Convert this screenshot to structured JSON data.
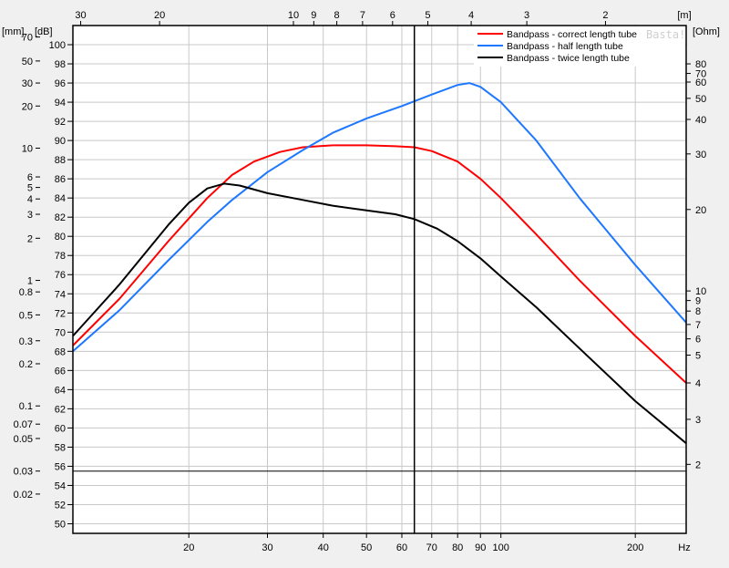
{
  "chart_data": {
    "type": "line",
    "title": "",
    "watermark": "Basta!",
    "xlabel": "Hz",
    "x_scale": "log",
    "xlim": [
      11,
      260
    ],
    "x_ticks": [
      20,
      30,
      40,
      50,
      60,
      70,
      80,
      90,
      100,
      200
    ],
    "x_ticks_labels": [
      "20",
      "30",
      "40",
      "50",
      "60",
      "70",
      "80",
      "90",
      "100",
      "200"
    ],
    "top_axis": {
      "unit": "[m]",
      "ticks": [
        {
          "label": "30",
          "hz": 11.45
        },
        {
          "label": "20",
          "hz": 17.2
        },
        {
          "label": "10",
          "hz": 34.3
        },
        {
          "label": "9",
          "hz": 38.1
        },
        {
          "label": "8",
          "hz": 42.9
        },
        {
          "label": "7",
          "hz": 49.0
        },
        {
          "label": "6",
          "hz": 57.2
        },
        {
          "label": "5",
          "hz": 68.6
        },
        {
          "label": "4",
          "hz": 85.8
        },
        {
          "label": "3",
          "hz": 114.3
        },
        {
          "label": "2",
          "hz": 171.5
        }
      ]
    },
    "left_axis_db": {
      "unit": "[dB]",
      "ylim": [
        49,
        102
      ],
      "ticks": [
        50,
        52,
        54,
        56,
        58,
        60,
        62,
        64,
        66,
        68,
        70,
        72,
        74,
        76,
        78,
        80,
        82,
        84,
        86,
        88,
        90,
        92,
        94,
        96,
        98,
        100
      ]
    },
    "left_axis_mm": {
      "unit": "[mm]",
      "ticks": [
        {
          "label": "70",
          "db": 100.8
        },
        {
          "label": "50",
          "db": 98.3
        },
        {
          "label": "30",
          "db": 96.0
        },
        {
          "label": "20",
          "db": 93.6
        },
        {
          "label": "10",
          "db": 89.2
        },
        {
          "label": "6",
          "db": 86.2
        },
        {
          "label": "5",
          "db": 85.1
        },
        {
          "label": "4",
          "db": 83.9
        },
        {
          "label": "3",
          "db": 82.3
        },
        {
          "label": "2",
          "db": 79.8
        },
        {
          "label": "1",
          "db": 75.4
        },
        {
          "label": "0.8",
          "db": 74.2
        },
        {
          "label": "0.5",
          "db": 71.8
        },
        {
          "label": "0.3",
          "db": 69.1
        },
        {
          "label": "0.2",
          "db": 66.7
        },
        {
          "label": "0.1",
          "db": 62.3
        },
        {
          "label": "0.07",
          "db": 60.4
        },
        {
          "label": "0.05",
          "db": 58.9
        },
        {
          "label": "0.03",
          "db": 55.5
        },
        {
          "label": "0.02",
          "db": 53.1
        }
      ]
    },
    "right_axis_ohm": {
      "unit": "[Ohm]",
      "ticks": [
        {
          "label": "80",
          "db": 98.0
        },
        {
          "label": "70",
          "db": 97.0
        },
        {
          "label": "60",
          "db": 96.1
        },
        {
          "label": "50",
          "db": 94.4
        },
        {
          "label": "40",
          "db": 92.2
        },
        {
          "label": "30",
          "db": 88.6
        },
        {
          "label": "20",
          "db": 82.8
        },
        {
          "label": "10",
          "db": 74.3
        },
        {
          "label": "9",
          "db": 73.3
        },
        {
          "label": "8",
          "db": 72.2
        },
        {
          "label": "7",
          "db": 70.8
        },
        {
          "label": "6",
          "db": 69.3
        },
        {
          "label": "5",
          "db": 67.6
        },
        {
          "label": "4",
          "db": 64.7
        },
        {
          "label": "3",
          "db": 60.9
        },
        {
          "label": "2",
          "db": 56.2
        }
      ]
    },
    "cursor": {
      "hz": 64,
      "db": 55.5
    },
    "legend": {
      "placement": "top-right"
    },
    "series": [
      {
        "name": "Bandpass - correct length tube",
        "color": "#ff0000",
        "points": [
          [
            11,
            68.6
          ],
          [
            14,
            73.5
          ],
          [
            18,
            79.5
          ],
          [
            22,
            84.0
          ],
          [
            25,
            86.4
          ],
          [
            28,
            87.8
          ],
          [
            32,
            88.8
          ],
          [
            36,
            89.3
          ],
          [
            42,
            89.5
          ],
          [
            50,
            89.5
          ],
          [
            58,
            89.4
          ],
          [
            64,
            89.3
          ],
          [
            70,
            88.9
          ],
          [
            80,
            87.8
          ],
          [
            90,
            86.0
          ],
          [
            100,
            84.0
          ],
          [
            120,
            80.2
          ],
          [
            150,
            75.4
          ],
          [
            200,
            69.6
          ],
          [
            260,
            64.7
          ]
        ]
      },
      {
        "name": "Bandpass - half length tube",
        "color": "#1e78ff",
        "points": [
          [
            11,
            68.0
          ],
          [
            14,
            72.3
          ],
          [
            18,
            77.5
          ],
          [
            22,
            81.5
          ],
          [
            25,
            83.8
          ],
          [
            30,
            86.7
          ],
          [
            36,
            89.0
          ],
          [
            42,
            90.8
          ],
          [
            50,
            92.3
          ],
          [
            60,
            93.6
          ],
          [
            70,
            94.8
          ],
          [
            80,
            95.8
          ],
          [
            85,
            96.0
          ],
          [
            90,
            95.6
          ],
          [
            100,
            94.0
          ],
          [
            120,
            90.0
          ],
          [
            150,
            84.0
          ],
          [
            200,
            77.0
          ],
          [
            260,
            71.0
          ]
        ]
      },
      {
        "name": "Bandpass - twice length tube",
        "color": "#000000",
        "points": [
          [
            11,
            69.6
          ],
          [
            14,
            75.0
          ],
          [
            18,
            81.2
          ],
          [
            20,
            83.5
          ],
          [
            22,
            85.0
          ],
          [
            24,
            85.5
          ],
          [
            26,
            85.3
          ],
          [
            30,
            84.5
          ],
          [
            36,
            83.8
          ],
          [
            42,
            83.2
          ],
          [
            50,
            82.7
          ],
          [
            58,
            82.3
          ],
          [
            64,
            81.8
          ],
          [
            72,
            80.8
          ],
          [
            80,
            79.5
          ],
          [
            90,
            77.7
          ],
          [
            100,
            75.8
          ],
          [
            120,
            72.6
          ],
          [
            150,
            68.3
          ],
          [
            200,
            62.8
          ],
          [
            260,
            58.4
          ]
        ]
      }
    ]
  }
}
